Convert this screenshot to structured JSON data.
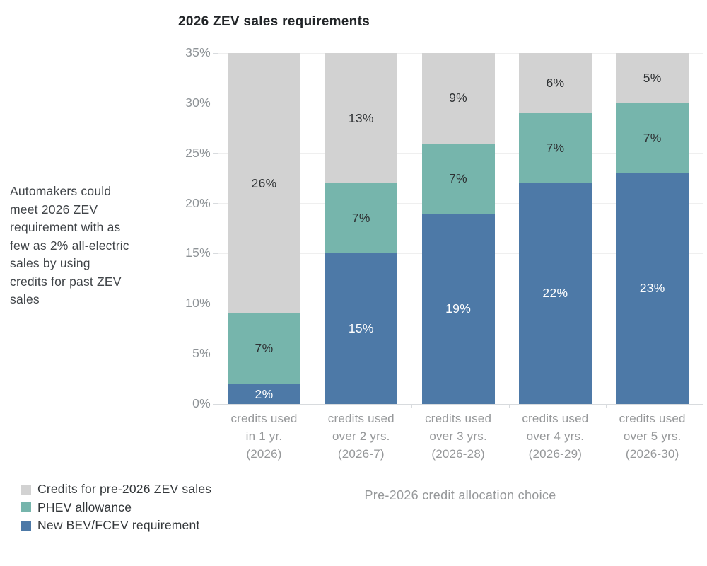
{
  "chart_data": {
    "type": "bar",
    "stacked": true,
    "title": "2026 ZEV sales requirements",
    "xlabel": "Pre-2026 credit allocation choice",
    "ylabel": "",
    "ylim": [
      0,
      35
    ],
    "yticks": [
      0,
      5,
      10,
      15,
      20,
      25,
      30,
      35
    ],
    "ytick_labels": [
      "0%",
      "5%",
      "10%",
      "15%",
      "20%",
      "25%",
      "30%",
      "35%"
    ],
    "grid": true,
    "legend_position": "bottom-left",
    "categories": [
      "credits used\nin 1 yr.\n(2026)",
      "credits used\nover 2 yrs.\n(2026-7)",
      "credits used\nover 3 yrs.\n(2026-28)",
      "credits used\nover 4 yrs.\n(2026-29)",
      "credits used\nover 5 yrs.\n(2026-30)"
    ],
    "series": [
      {
        "name": "New BEV/FCEV requirement",
        "color": "#4d79a7",
        "label_color": "#ffffff",
        "values": [
          2,
          15,
          19,
          22,
          23
        ],
        "labels": [
          "2%",
          "15%",
          "19%",
          "22%",
          "23%"
        ]
      },
      {
        "name": "PHEV allowance",
        "color": "#76b5ac",
        "label_color": "#2e3133",
        "values": [
          7,
          7,
          7,
          7,
          7
        ],
        "labels": [
          "7%",
          "7%",
          "7%",
          "7%",
          "7%"
        ]
      },
      {
        "name": "Credits for pre-2026 ZEV sales",
        "color": "#d2d2d2",
        "label_color": "#2e3133",
        "values": [
          26,
          13,
          9,
          6,
          5
        ],
        "labels": [
          "26%",
          "13%",
          "9%",
          "6%",
          "5%"
        ]
      }
    ]
  },
  "annotation": "Automakers could\nmeet 2026 ZEV\nrequirement with as\nfew as 2% all-electric\nsales by using\ncredits for past ZEV\nsales",
  "legend": [
    {
      "label": "Credits for pre-2026 ZEV sales",
      "color": "#d2d2d2"
    },
    {
      "label": "PHEV allowance",
      "color": "#76b5ac"
    },
    {
      "label": "New BEV/FCEV requirement",
      "color": "#4d79a7"
    }
  ],
  "colors": {
    "bev_blue": "#4d79a7",
    "phev_teal": "#76b5ac",
    "credits_gray": "#d2d2d2",
    "gridline": "#efefef",
    "axis": "#d8dbde",
    "muted_text": "#96989a",
    "tick_text": "#8e9397",
    "dark_text": "#2e3133",
    "title_text": "#222528"
  }
}
